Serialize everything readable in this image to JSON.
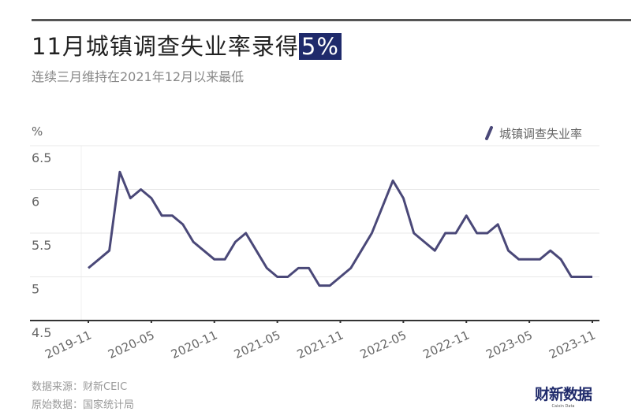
{
  "title": "11月城镇调查失业率录得",
  "title_highlight": "5%",
  "subtitle": "连续三月维持在2021年12月以来最低",
  "footer": {
    "source": "数据来源：财新CEIC",
    "origin": "原始数据：国家统计局"
  },
  "logo": {
    "text": "财新数据",
    "sub": "Caixin Data"
  },
  "colors": {
    "line": "#4a4878",
    "highlight": "#1f2a6b",
    "grid": "#e8e8e8"
  },
  "chart_data": {
    "type": "line",
    "title": "11月城镇调查失业率录得5%",
    "ylabel": "%",
    "ylim": [
      4.5,
      6.5
    ],
    "yticks": [
      "4.5",
      "5",
      "5.5",
      "6",
      "6.5"
    ],
    "xticks": [
      "2019-11",
      "2020-05",
      "2020-11",
      "2021-05",
      "2021-11",
      "2022-05",
      "2022-11",
      "2023-05",
      "2023-11"
    ],
    "grid": true,
    "legend_position": "top-right",
    "x_start": "2019-11",
    "x_end": "2023-11",
    "series": [
      {
        "name": "城镇调查失业率",
        "values": [
          5.1,
          5.2,
          5.3,
          6.2,
          5.9,
          6.0,
          5.9,
          5.7,
          5.7,
          5.6,
          5.4,
          5.3,
          5.2,
          5.2,
          5.4,
          5.5,
          5.3,
          5.1,
          5.0,
          5.0,
          5.1,
          5.1,
          4.9,
          4.9,
          5.0,
          5.1,
          5.3,
          5.5,
          5.8,
          6.1,
          5.9,
          5.5,
          5.4,
          5.3,
          5.5,
          5.5,
          5.7,
          5.5,
          5.5,
          5.6,
          5.3,
          5.2,
          5.2,
          5.2,
          5.3,
          5.2,
          5.0,
          5.0,
          5.0
        ]
      }
    ]
  }
}
